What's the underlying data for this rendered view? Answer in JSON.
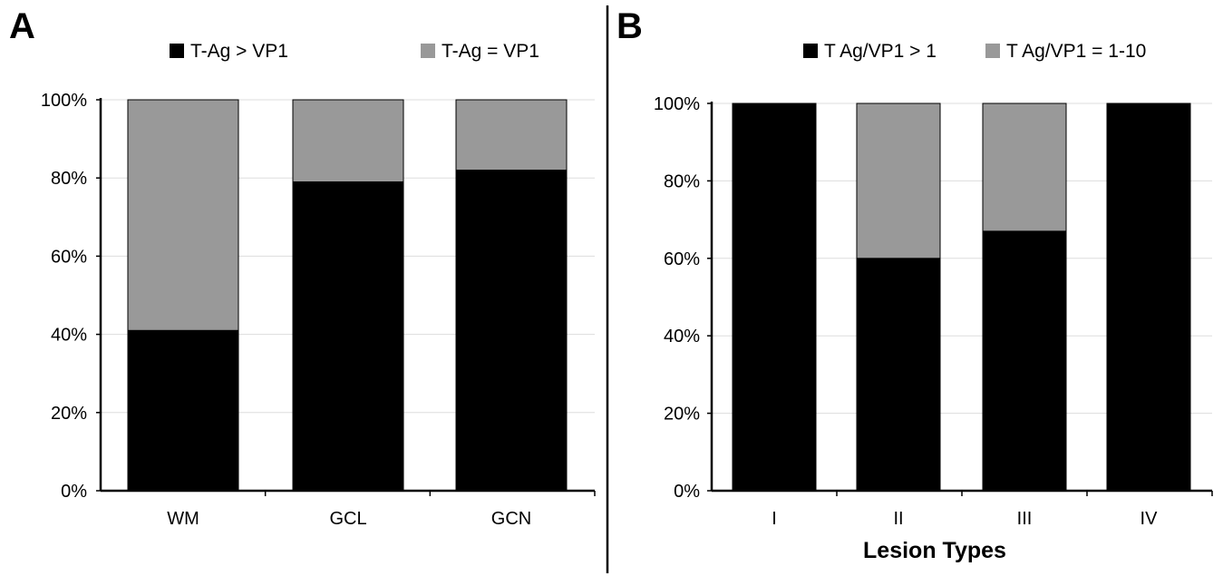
{
  "colors": {
    "series_primary": "#000000",
    "series_secondary": "#999999",
    "grid": "#dddddd",
    "axis": "#000000"
  },
  "chart_data": [
    {
      "type": "bar",
      "stacked": true,
      "panel_label": "A",
      "categories": [
        "WM",
        "GCL",
        "GCN"
      ],
      "series": [
        {
          "name": "T-Ag > VP1",
          "values": [
            41,
            79,
            82
          ]
        },
        {
          "name": "T-Ag = VP1",
          "values": [
            59,
            21,
            18
          ]
        }
      ],
      "yticks": [
        "0%",
        "20%",
        "40%",
        "60%",
        "80%",
        "100%"
      ],
      "ylim": [
        0,
        100
      ],
      "xlabel": "",
      "ylabel": "",
      "grid": true,
      "legend_position": "top"
    },
    {
      "type": "bar",
      "stacked": true,
      "panel_label": "B",
      "categories": [
        "I",
        "II",
        "III",
        "IV"
      ],
      "series": [
        {
          "name": "T Ag/VP1 > 1",
          "values": [
            100,
            60,
            67,
            100
          ]
        },
        {
          "name": "T Ag/VP1 = 1-10",
          "values": [
            0,
            40,
            33,
            0
          ]
        }
      ],
      "yticks": [
        "0%",
        "20%",
        "40%",
        "60%",
        "80%",
        "100%"
      ],
      "ylim": [
        0,
        100
      ],
      "xlabel": "Lesion Types",
      "ylabel": "",
      "grid": true,
      "legend_position": "top"
    }
  ]
}
